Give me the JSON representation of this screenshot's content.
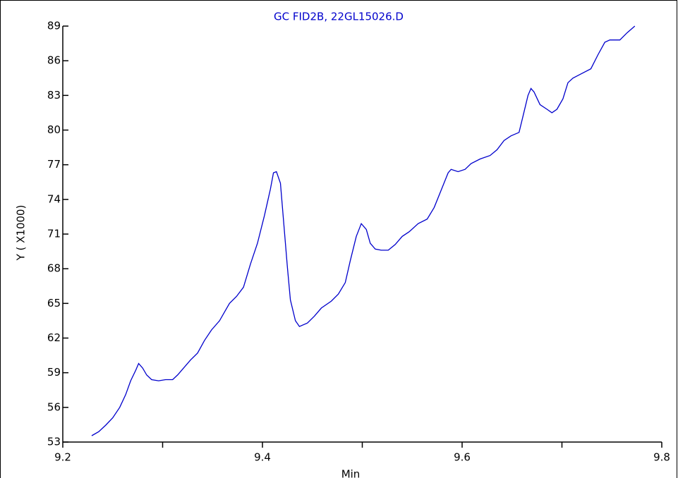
{
  "chart_data": {
    "type": "line",
    "title": "GC FID2B, 22GL15026.D",
    "xlabel": "Min",
    "ylabel": "Y ( X1000)",
    "xlim": [
      9.2,
      9.8
    ],
    "xticks": [
      9.2,
      9.4,
      9.6,
      9.8
    ],
    "xminor_ticks": [
      9.3,
      9.5,
      9.7
    ],
    "ylim": [
      53,
      89
    ],
    "yticks": [
      53,
      56,
      59,
      62,
      65,
      68,
      71,
      74,
      77,
      80,
      83,
      86,
      89
    ],
    "series": [
      {
        "color": "#0000cc",
        "x": [
          9.229,
          9.236,
          9.243,
          9.25,
          9.257,
          9.263,
          9.268,
          9.273,
          9.276,
          9.28,
          9.284,
          9.289,
          9.296,
          9.303,
          9.31,
          9.315,
          9.321,
          9.328,
          9.335,
          9.342,
          9.349,
          9.357,
          9.363,
          9.367,
          9.374,
          9.381,
          9.388,
          9.395,
          9.402,
          9.408,
          9.411,
          9.414,
          9.418,
          9.421,
          9.425,
          9.428,
          9.433,
          9.437,
          9.445,
          9.452,
          9.459,
          9.469,
          9.476,
          9.483,
          9.488,
          9.494,
          9.499,
          9.504,
          9.508,
          9.513,
          9.519,
          9.526,
          9.533,
          9.54,
          9.547,
          9.556,
          9.565,
          9.572,
          9.579,
          9.586,
          9.589,
          9.596,
          9.603,
          9.609,
          9.618,
          9.628,
          9.635,
          9.642,
          9.649,
          9.657,
          9.661,
          9.666,
          9.669,
          9.672,
          9.678,
          9.685,
          9.69,
          9.695,
          9.701,
          9.706,
          9.711,
          9.72,
          9.729,
          9.736,
          9.743,
          9.748,
          9.758,
          9.765,
          9.773
        ],
        "values": [
          53.55,
          53.9,
          54.46,
          55.1,
          56.0,
          57.1,
          58.3,
          59.2,
          59.8,
          59.4,
          58.8,
          58.4,
          58.3,
          58.4,
          58.4,
          58.8,
          59.4,
          60.1,
          60.7,
          61.8,
          62.7,
          63.5,
          64.4,
          65.0,
          65.6,
          66.4,
          68.4,
          70.2,
          72.6,
          74.9,
          76.3,
          76.4,
          75.4,
          72.3,
          68.1,
          65.3,
          63.5,
          63.0,
          63.3,
          63.9,
          64.6,
          65.2,
          65.8,
          66.8,
          68.7,
          70.8,
          71.9,
          71.4,
          70.2,
          69.7,
          69.6,
          69.6,
          70.1,
          70.8,
          71.2,
          71.9,
          72.3,
          73.3,
          74.8,
          76.3,
          76.6,
          76.4,
          76.6,
          77.1,
          77.5,
          77.8,
          78.3,
          79.1,
          79.5,
          79.8,
          81.2,
          83.0,
          83.6,
          83.3,
          82.2,
          81.8,
          81.5,
          81.8,
          82.7,
          84.1,
          84.5,
          84.9,
          85.3,
          86.5,
          87.6,
          87.8,
          87.8,
          88.4,
          89.0
        ]
      }
    ]
  }
}
